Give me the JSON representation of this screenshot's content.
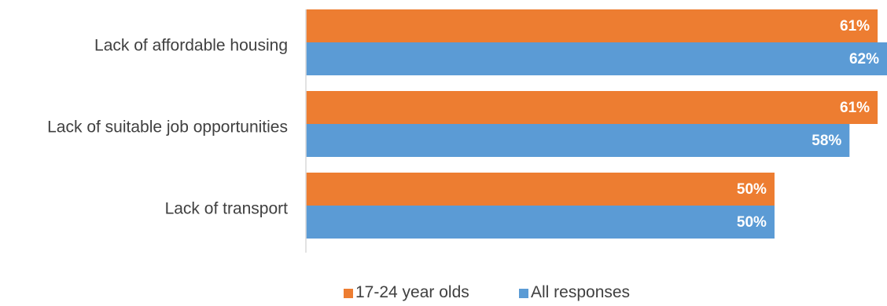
{
  "chart_data": {
    "type": "bar",
    "orientation": "horizontal",
    "categories": [
      "Lack of affordable housing",
      "Lack of suitable job opportunities",
      "Lack of transport"
    ],
    "series": [
      {
        "name": "17-24 year olds",
        "values": [
          61,
          61,
          50
        ],
        "labels": [
          "61%",
          "61%",
          "50%"
        ],
        "color": "#ED7D31"
      },
      {
        "name": "All responses",
        "values": [
          62,
          58,
          50
        ],
        "labels": [
          "62%",
          "58%",
          "50%"
        ],
        "color": "#5B9BD5"
      }
    ],
    "xlim": [
      0,
      62
    ],
    "grid": false,
    "legend_position": "bottom"
  }
}
